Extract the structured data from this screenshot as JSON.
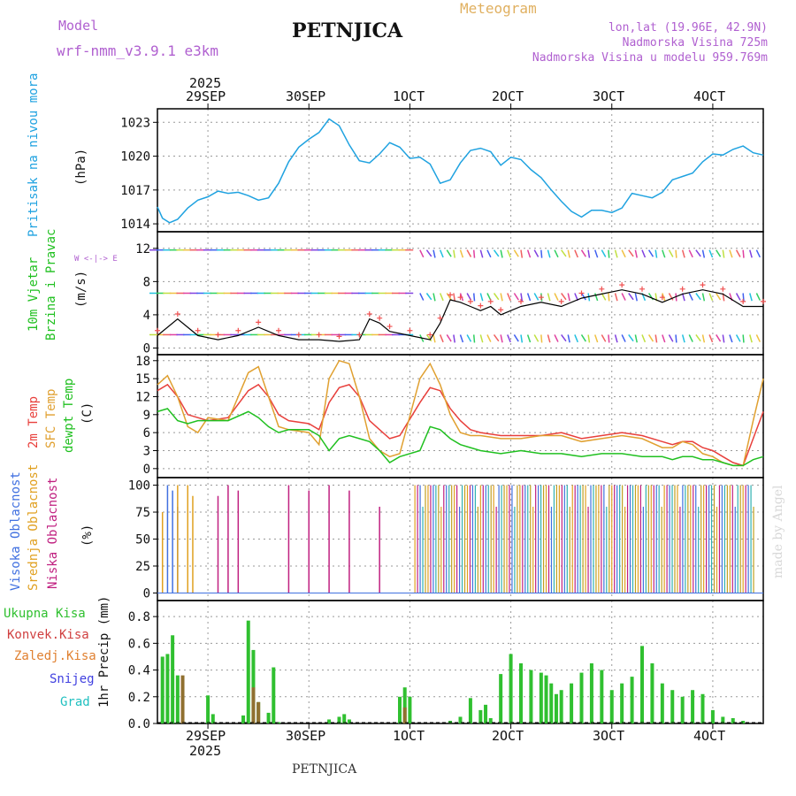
{
  "header": {
    "model_label": "Model",
    "model_name": "wrf-nmm_v3.9.1  e3km",
    "station": "PETNJICA",
    "meteogram": "Meteogram",
    "lonlat": "lon,lat (19.96E, 42.9N)",
    "elevation": "Nadmorska Visina 725m",
    "model_elevation": "Nadmorska Visina u modelu 959.769m"
  },
  "axis": {
    "year": "2025",
    "days": [
      "29SEP",
      "30SEP",
      "1OCT",
      "2OCT",
      "3OCT",
      "4OCT"
    ],
    "footer": "PETNJICA",
    "watermark": "made by Angel"
  },
  "panels": {
    "pressure": {
      "label": "Pritisak na nivou mora",
      "unit": "(hPa)"
    },
    "wind": {
      "label1": "10m Vjetar",
      "label2": "Brzina i Pravac",
      "unit": "(m/s)",
      "compass": "W <-|-> E"
    },
    "temp": {
      "label1": "2m Temp",
      "label2": "SFC Temp",
      "label3": "dewpt Temp",
      "unit": "(C)"
    },
    "cloud": {
      "label1": "Visoka Oblacnost",
      "label2": "Srednja Oblacnost",
      "label3": "Niska Oblacnost",
      "unit": "(%)"
    },
    "precip": {
      "legend": [
        "Ukupna Kisa",
        "Konvek.Kisa",
        "Zaledj.Kisa",
        "Snijeg",
        "Grad"
      ],
      "label": "1hr Precip (mm)"
    }
  },
  "colors": {
    "pressure": "#1fa2e0",
    "temp2m": "#e8403c",
    "sfc": "#e0a030",
    "dewpt": "#20c020",
    "precip_total": "#30c030",
    "precip_conv": "#d04040",
    "precip_frozen": "#e08030",
    "snow": "#4040e0",
    "hail": "#20c0c0",
    "cloud_high": "#4070e0",
    "cloud_mid": "#e0a020",
    "cloud_low": "#c02080",
    "model_label": "#b060d0",
    "meteogram_label": "#e0b060"
  },
  "chart_data": [
    {
      "type": "line",
      "title": "Pritisak na nivou mora",
      "ylabel": "(hPa)",
      "ylim": [
        1013.3,
        1024.2
      ],
      "yticks": [
        1014,
        1017,
        1020,
        1023
      ],
      "xlim": [
        0,
        6
      ],
      "series": [
        {
          "name": "MSLP",
          "x": [
            0.0,
            0.05,
            0.12,
            0.2,
            0.3,
            0.4,
            0.5,
            0.6,
            0.7,
            0.8,
            0.9,
            1.0,
            1.1,
            1.2,
            1.3,
            1.4,
            1.5,
            1.6,
            1.7,
            1.8,
            1.9,
            2.0,
            2.1,
            2.2,
            2.3,
            2.4,
            2.5,
            2.6,
            2.7,
            2.8,
            2.9,
            3.0,
            3.1,
            3.2,
            3.3,
            3.4,
            3.5,
            3.6,
            3.7,
            3.8,
            3.9,
            4.0,
            4.1,
            4.2,
            4.3,
            4.4,
            4.5,
            4.6,
            4.7,
            4.8,
            4.9,
            5.0,
            5.1,
            5.2,
            5.3,
            5.4,
            5.5,
            5.6,
            5.7,
            5.8,
            5.9,
            6.0
          ],
          "y": [
            1015.5,
            1014.5,
            1014.1,
            1014.4,
            1015.4,
            1016.1,
            1016.4,
            1016.9,
            1016.7,
            1016.8,
            1016.5,
            1016.1,
            1016.3,
            1017.6,
            1019.5,
            1020.8,
            1021.5,
            1022.1,
            1023.3,
            1022.7,
            1021.0,
            1019.6,
            1019.4,
            1020.2,
            1021.2,
            1020.8,
            1019.8,
            1019.9,
            1019.3,
            1017.6,
            1017.9,
            1019.4,
            1020.5,
            1020.7,
            1020.4,
            1019.2,
            1019.9,
            1019.7,
            1018.8,
            1018.1,
            1017.0,
            1016.0,
            1015.1,
            1014.6,
            1015.2,
            1015.2,
            1015.0,
            1015.4,
            1016.7,
            1016.5,
            1016.3,
            1016.8,
            1017.9,
            1018.2,
            1018.5,
            1019.5,
            1020.2,
            1020.1,
            1020.6,
            1020.9,
            1020.3,
            1020.1
          ]
        }
      ]
    },
    {
      "type": "line",
      "title": "10m Vjetar Brzina i Pravac",
      "ylabel": "(m/s)",
      "ylim": [
        -0.8,
        14.0
      ],
      "yticks": [
        0,
        4,
        8,
        12
      ],
      "xlim": [
        0,
        6
      ],
      "series": [
        {
          "name": "wind speed",
          "x": [
            0.0,
            0.2,
            0.4,
            0.6,
            0.8,
            1.0,
            1.2,
            1.4,
            1.6,
            1.8,
            2.0,
            2.1,
            2.2,
            2.3,
            2.5,
            2.7,
            2.8,
            2.9,
            3.0,
            3.1,
            3.2,
            3.3,
            3.4,
            3.6,
            3.8,
            4.0,
            4.2,
            4.4,
            4.6,
            4.8,
            5.0,
            5.2,
            5.4,
            5.6,
            5.8,
            6.0
          ],
          "y": [
            1.5,
            3.5,
            1.5,
            1.0,
            1.5,
            2.5,
            1.5,
            1.0,
            1.0,
            0.8,
            1.0,
            3.5,
            3.0,
            2.0,
            1.5,
            1.0,
            3.0,
            5.8,
            5.5,
            5.0,
            4.5,
            5.0,
            4.0,
            5.0,
            5.5,
            5.0,
            6.0,
            6.5,
            7.0,
            6.5,
            5.5,
            6.5,
            7.0,
            6.5,
            5.0,
            5.0
          ]
        }
      ]
    },
    {
      "type": "line",
      "title": "Temperature",
      "ylabel": "(C)",
      "ylim": [
        -1.5,
        19.0
      ],
      "yticks": [
        0,
        3,
        6,
        9,
        12,
        15,
        18
      ],
      "xlim": [
        0,
        6
      ],
      "series": [
        {
          "name": "2m Temp",
          "x": [
            0.0,
            0.1,
            0.2,
            0.3,
            0.4,
            0.5,
            0.7,
            0.9,
            1.0,
            1.1,
            1.2,
            1.3,
            1.5,
            1.6,
            1.7,
            1.8,
            1.9,
            2.0,
            2.1,
            2.2,
            2.3,
            2.4,
            2.6,
            2.7,
            2.8,
            2.9,
            3.0,
            3.1,
            3.2,
            3.4,
            3.6,
            3.8,
            4.0,
            4.2,
            4.4,
            4.6,
            4.8,
            5.0,
            5.1,
            5.2,
            5.3,
            5.4,
            5.5,
            5.6,
            5.7,
            5.8,
            5.9,
            6.0
          ],
          "y": [
            13.0,
            14.0,
            12.0,
            9.0,
            8.5,
            8.0,
            8.5,
            13.0,
            14.0,
            12.0,
            9.0,
            8.0,
            7.5,
            6.5,
            11.0,
            13.5,
            14.0,
            12.0,
            8.0,
            6.5,
            5.0,
            5.5,
            11.0,
            13.5,
            13.0,
            10.0,
            8.0,
            6.5,
            6.0,
            5.5,
            5.5,
            5.5,
            6.0,
            5.0,
            5.5,
            6.0,
            5.5,
            4.5,
            4.0,
            4.5,
            4.5,
            3.5,
            3.0,
            2.0,
            1.0,
            0.5,
            5.0,
            9.5
          ]
        },
        {
          "name": "SFC Temp",
          "x": [
            0.0,
            0.1,
            0.2,
            0.3,
            0.4,
            0.5,
            0.7,
            0.9,
            1.0,
            1.1,
            1.2,
            1.3,
            1.5,
            1.6,
            1.7,
            1.8,
            1.9,
            2.0,
            2.1,
            2.2,
            2.3,
            2.4,
            2.6,
            2.7,
            2.8,
            2.9,
            3.0,
            3.1,
            3.2,
            3.4,
            3.6,
            3.8,
            4.0,
            4.2,
            4.4,
            4.6,
            4.8,
            5.0,
            5.1,
            5.2,
            5.3,
            5.4,
            5.5,
            5.6,
            5.7,
            5.8,
            5.9,
            6.0
          ],
          "y": [
            14.0,
            15.5,
            12.0,
            7.0,
            6.0,
            8.5,
            8.0,
            16.0,
            17.0,
            12.0,
            7.0,
            6.5,
            6.0,
            4.0,
            15.0,
            18.0,
            17.5,
            12.0,
            5.0,
            3.0,
            2.0,
            2.5,
            15.0,
            17.5,
            14.0,
            9.0,
            6.0,
            5.5,
            5.5,
            5.0,
            5.0,
            5.5,
            5.5,
            4.5,
            5.0,
            5.5,
            5.0,
            3.5,
            3.5,
            4.5,
            4.0,
            2.5,
            2.0,
            1.0,
            0.5,
            0.5,
            8.0,
            15.0
          ]
        },
        {
          "name": "dewpt Temp",
          "x": [
            0.0,
            0.1,
            0.2,
            0.3,
            0.4,
            0.5,
            0.7,
            0.9,
            1.0,
            1.1,
            1.2,
            1.3,
            1.5,
            1.6,
            1.7,
            1.8,
            1.9,
            2.0,
            2.1,
            2.2,
            2.3,
            2.4,
            2.6,
            2.7,
            2.8,
            2.9,
            3.0,
            3.1,
            3.2,
            3.4,
            3.6,
            3.8,
            4.0,
            4.2,
            4.4,
            4.6,
            4.8,
            5.0,
            5.1,
            5.2,
            5.3,
            5.4,
            5.5,
            5.6,
            5.7,
            5.8,
            5.9,
            6.0
          ],
          "y": [
            9.5,
            10.0,
            8.0,
            7.5,
            8.0,
            8.0,
            8.0,
            9.5,
            8.5,
            7.0,
            6.0,
            6.5,
            6.5,
            5.5,
            3.0,
            5.0,
            5.5,
            5.0,
            4.5,
            3.0,
            1.0,
            2.0,
            3.0,
            7.0,
            6.5,
            5.0,
            4.0,
            3.5,
            3.0,
            2.5,
            3.0,
            2.5,
            2.5,
            2.0,
            2.5,
            2.5,
            2.0,
            2.0,
            1.5,
            2.0,
            2.0,
            1.5,
            1.5,
            1.0,
            0.5,
            0.5,
            1.5,
            2.0
          ]
        }
      ]
    },
    {
      "type": "bar",
      "title": "Oblacnost",
      "ylabel": "(%)",
      "ylim": [
        -7,
        107
      ],
      "yticks": [
        0,
        25,
        50,
        75,
        100
      ],
      "xlim": [
        0,
        6
      ],
      "series": [
        {
          "name": "Visoka Oblacnost",
          "x": [
            0.1,
            0.15,
            0.2,
            0.3
          ],
          "values": [
            100,
            95,
            80,
            30
          ]
        },
        {
          "name": "Srednja Oblacnost",
          "x": [
            0.05,
            0.2,
            0.3,
            0.35
          ],
          "values": [
            75,
            100,
            100,
            90
          ]
        },
        {
          "name": "Niska Oblacnost",
          "x": [
            0.6,
            0.7,
            0.8,
            1.3,
            1.5,
            1.7,
            1.9,
            2.2
          ],
          "values": [
            90,
            100,
            95,
            100,
            95,
            100,
            95,
            80
          ]
        }
      ]
    },
    {
      "type": "bar",
      "title": "1hr Precip",
      "ylabel": "1hr Precip (mm)",
      "ylim": [
        0,
        0.92
      ],
      "yticks": [
        0,
        0.2,
        0.4,
        0.6,
        0.8
      ],
      "xlim": [
        0,
        6
      ],
      "series": [
        {
          "name": "Ukupna Kisa",
          "x": [
            0.05,
            0.1,
            0.15,
            0.2,
            0.25,
            0.5,
            0.55,
            0.85,
            0.9,
            0.95,
            1.0,
            1.1,
            1.15,
            1.2,
            1.7,
            1.8,
            1.85,
            1.9,
            2.4,
            2.45,
            2.5,
            2.9,
            3.0,
            3.1,
            3.2,
            3.25,
            3.3,
            3.4,
            3.5,
            3.6,
            3.7,
            3.8,
            3.85,
            3.9,
            3.95,
            4.0,
            4.1,
            4.2,
            4.3,
            4.4,
            4.5,
            4.6,
            4.7,
            4.8,
            4.9,
            5.0,
            5.1,
            5.2,
            5.3,
            5.4,
            5.5,
            5.6,
            5.7,
            5.8
          ],
          "values": [
            0.5,
            0.52,
            0.66,
            0.36,
            0.02,
            0.21,
            0.07,
            0.06,
            0.77,
            0.55,
            0.16,
            0.08,
            0.42,
            0.01,
            0.03,
            0.05,
            0.07,
            0.03,
            0.2,
            0.27,
            0.2,
            0.02,
            0.05,
            0.19,
            0.1,
            0.14,
            0.04,
            0.37,
            0.52,
            0.45,
            0.4,
            0.38,
            0.36,
            0.3,
            0.22,
            0.25,
            0.3,
            0.38,
            0.45,
            0.4,
            0.25,
            0.3,
            0.35,
            0.58,
            0.45,
            0.3,
            0.25,
            0.2,
            0.25,
            0.22,
            0.1,
            0.05,
            0.04,
            0.02
          ]
        },
        {
          "name": "Konvek.Kisa",
          "x": [
            0.25,
            0.95,
            1.0,
            2.45
          ],
          "values": [
            0.36,
            0.27,
            0.16,
            0.12
          ]
        }
      ]
    }
  ]
}
